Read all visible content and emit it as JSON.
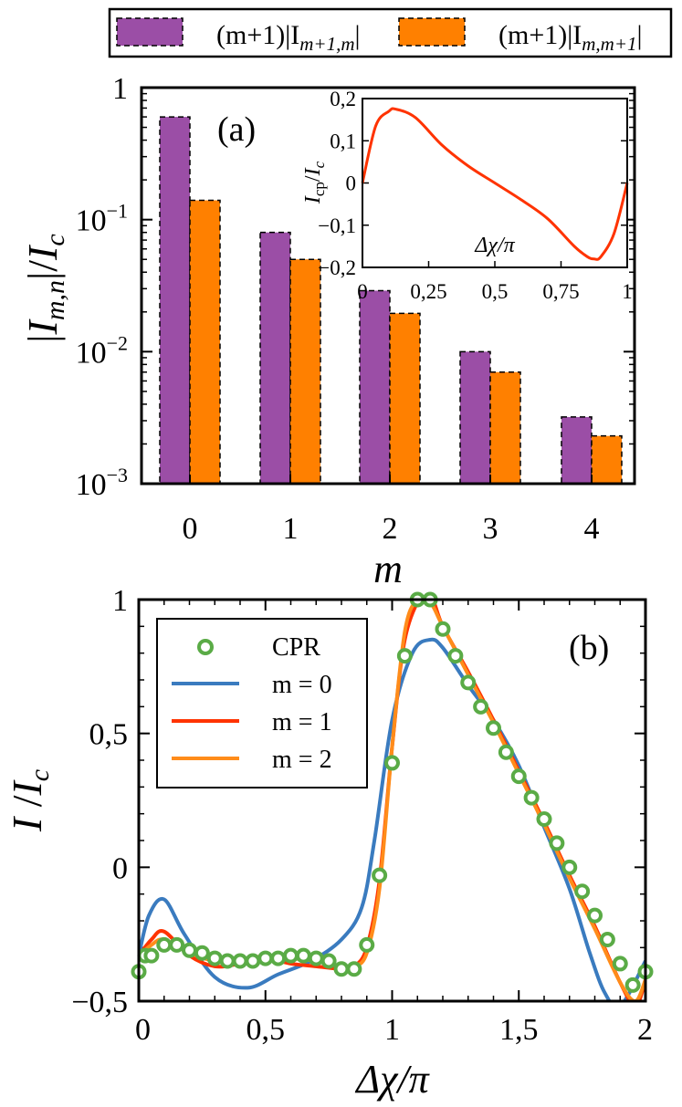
{
  "legend_top": {
    "entries": [
      {
        "label_main": "(m+1)|I",
        "label_sub": "m+1,m",
        "label_end": "|",
        "color": "#9b4ea6"
      },
      {
        "label_main": "(m+1)|I",
        "label_sub": "m,m+1",
        "label_end": "|",
        "color": "#ff8000"
      }
    ]
  },
  "chart_data": [
    {
      "type": "bar",
      "panel_label": "(a)",
      "title": "",
      "xlabel": "m",
      "ylabel": "|I_m,n|/I_c",
      "yscale": "log",
      "ylim": [
        0.001,
        1
      ],
      "categories": [
        "0",
        "1",
        "2",
        "3",
        "4"
      ],
      "y_ticks": [
        {
          "label": "1",
          "value": 1
        },
        {
          "label": "10",
          "exp": "−1",
          "value": 0.1
        },
        {
          "label": "10",
          "exp": "−2",
          "value": 0.01
        },
        {
          "label": "10",
          "exp": "−3",
          "value": 0.001
        }
      ],
      "series": [
        {
          "name": "(m+1)|I_{m+1,m}|",
          "color": "#9b4ea6",
          "values": [
            0.6,
            0.08,
            0.029,
            0.01,
            0.0032
          ]
        },
        {
          "name": "(m+1)|I_{m,m+1}|",
          "color": "#ff8000",
          "values": [
            0.14,
            0.05,
            0.0195,
            0.007,
            0.0023
          ]
        }
      ]
    },
    {
      "type": "line",
      "panel_label": "inset",
      "xlabel": "Δχ/π",
      "ylabel": "I_cp/I_c",
      "xlim": [
        0,
        1
      ],
      "ylim": [
        -0.2,
        0.2
      ],
      "x_ticks": [
        "0",
        "0,25",
        "0,5",
        "0,75",
        "1"
      ],
      "y_ticks": [
        "0,2",
        "0,1",
        "0",
        "−0,1",
        "−0,2"
      ],
      "series": [
        {
          "name": "I_cp",
          "color": "#ff3300",
          "x": [
            0,
            0.05,
            0.1,
            0.125,
            0.2,
            0.3,
            0.4,
            0.5,
            0.6,
            0.7,
            0.8,
            0.85,
            0.875,
            0.9,
            0.95,
            1.0
          ],
          "y": [
            0,
            0.135,
            0.17,
            0.175,
            0.155,
            0.09,
            0.04,
            0.0,
            -0.04,
            -0.085,
            -0.15,
            -0.175,
            -0.18,
            -0.175,
            -0.12,
            0.0
          ]
        }
      ]
    },
    {
      "type": "line",
      "panel_label": "(b)",
      "xlabel": "Δχ/π",
      "ylabel": "I/I_c",
      "xlim": [
        0,
        2
      ],
      "ylim": [
        -0.5,
        1
      ],
      "x_ticks": [
        "0",
        "0,5",
        "1",
        "1,5",
        "2"
      ],
      "y_ticks": [
        "1",
        "0,5",
        "0",
        "−0,5"
      ],
      "legend": [
        "CPR",
        "m = 0",
        "m = 1",
        "m = 2"
      ],
      "series": [
        {
          "name": "m = 0",
          "color": "#3a7bbf",
          "x": [
            0,
            0.04,
            0.1,
            0.18,
            0.3,
            0.43,
            0.55,
            0.68,
            0.8,
            0.88,
            0.93,
            1.0,
            1.08,
            1.15,
            1.2,
            1.3,
            1.4,
            1.5,
            1.6,
            1.7,
            1.78,
            1.84,
            1.9,
            2.0
          ],
          "y": [
            -0.33,
            -0.18,
            -0.12,
            -0.25,
            -0.41,
            -0.45,
            -0.4,
            -0.35,
            -0.27,
            -0.15,
            0.1,
            0.55,
            0.8,
            0.85,
            0.82,
            0.68,
            0.55,
            0.38,
            0.15,
            -0.08,
            -0.32,
            -0.47,
            -0.52,
            -0.35
          ]
        },
        {
          "name": "m = 1",
          "color": "#ff3300",
          "x": [
            0,
            0.05,
            0.1,
            0.2,
            0.3,
            0.4,
            0.5,
            0.6,
            0.7,
            0.8,
            0.85,
            0.9,
            0.95,
            1.0,
            1.05,
            1.12,
            1.16,
            1.2,
            1.3,
            1.4,
            1.5,
            1.6,
            1.7,
            1.8,
            1.9,
            1.96,
            2.0
          ],
          "y": [
            -0.33,
            -0.27,
            -0.24,
            -0.33,
            -0.37,
            -0.36,
            -0.34,
            -0.36,
            -0.37,
            -0.38,
            -0.37,
            -0.3,
            -0.05,
            0.45,
            0.85,
            1.02,
            1.0,
            0.9,
            0.73,
            0.55,
            0.36,
            0.17,
            -0.03,
            -0.22,
            -0.43,
            -0.52,
            -0.42
          ]
        },
        {
          "name": "m = 2",
          "color": "#ff8c1a",
          "x": [
            0,
            0.05,
            0.1,
            0.2,
            0.3,
            0.4,
            0.5,
            0.6,
            0.7,
            0.8,
            0.85,
            0.9,
            0.95,
            1.0,
            1.05,
            1.1,
            1.15,
            1.2,
            1.3,
            1.4,
            1.5,
            1.6,
            1.7,
            1.8,
            1.9,
            1.96,
            2.0
          ],
          "y": [
            -0.33,
            -0.29,
            -0.27,
            -0.32,
            -0.35,
            -0.35,
            -0.33,
            -0.34,
            -0.35,
            -0.37,
            -0.37,
            -0.32,
            -0.08,
            0.45,
            0.88,
            1.0,
            0.99,
            0.9,
            0.72,
            0.54,
            0.35,
            0.16,
            -0.04,
            -0.23,
            -0.43,
            -0.5,
            -0.42
          ]
        },
        {
          "name": "CPR",
          "color": "#5aab46",
          "marker": "circle",
          "x": [
            0,
            0.025,
            0.05,
            0.1,
            0.15,
            0.2,
            0.25,
            0.3,
            0.35,
            0.4,
            0.45,
            0.5,
            0.55,
            0.6,
            0.65,
            0.7,
            0.75,
            0.8,
            0.85,
            0.9,
            0.95,
            1.0,
            1.05,
            1.1,
            1.15,
            1.2,
            1.25,
            1.3,
            1.35,
            1.4,
            1.45,
            1.5,
            1.55,
            1.6,
            1.65,
            1.7,
            1.75,
            1.8,
            1.85,
            1.9,
            1.95,
            2.0
          ],
          "y": [
            -0.39,
            -0.33,
            -0.33,
            -0.29,
            -0.29,
            -0.31,
            -0.32,
            -0.34,
            -0.35,
            -0.35,
            -0.35,
            -0.34,
            -0.34,
            -0.33,
            -0.33,
            -0.34,
            -0.35,
            -0.38,
            -0.38,
            -0.29,
            -0.03,
            0.39,
            0.79,
            1.0,
            1.0,
            0.89,
            0.79,
            0.69,
            0.6,
            0.52,
            0.43,
            0.34,
            0.26,
            0.18,
            0.09,
            0.0,
            -0.09,
            -0.18,
            -0.27,
            -0.36,
            -0.44,
            -0.39
          ]
        }
      ]
    }
  ]
}
